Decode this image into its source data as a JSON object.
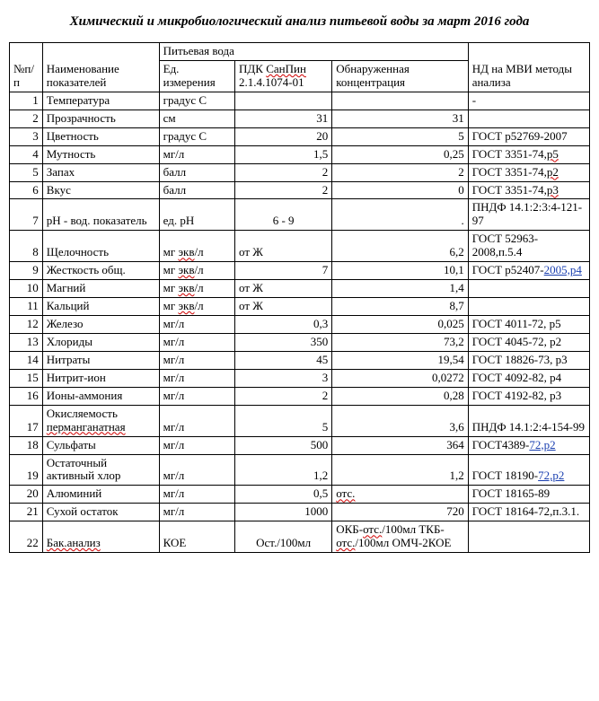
{
  "title": "Химический и микробиологический анализ питьевой воды за март 2016 года",
  "headers": {
    "n": "№п/п",
    "name": "Наименование показателей",
    "water": "Питьевая вода",
    "unit": "Ед. измерения",
    "pdk_prefix": "ПДК ",
    "pdk_link": "СанПин",
    "pdk_suffix": " 2.1.4.1074-01",
    "conc": "Обнаруженная концентрация",
    "nd": "НД на МВИ методы анализа"
  },
  "rows": [
    {
      "n": "1",
      "name": "Температура",
      "unit": "градус С",
      "pdk": "",
      "conc": "",
      "nd": "-"
    },
    {
      "n": "2",
      "name": "Прозрачность",
      "unit": "см",
      "pdk": "31",
      "conc": "31",
      "nd": ""
    },
    {
      "n": "3",
      "name": "Цветность",
      "unit": "градус С",
      "pdk": "20",
      "conc": "5",
      "nd": "ГОСТ р52769-2007"
    },
    {
      "n": "4",
      "name": "Мутность",
      "unit": "мг/л",
      "pdk": "1,5",
      "conc": "0,25",
      "nd_parts": [
        "ГОСТ 3351-74,",
        {
          "wave": "р5"
        }
      ]
    },
    {
      "n": "5",
      "name": "Запах",
      "unit": "балл",
      "pdk": "2",
      "conc": "2",
      "nd_parts": [
        "ГОСТ 3351-74,",
        {
          "wave": "р2"
        }
      ]
    },
    {
      "n": "6",
      "name": "Вкус",
      "unit": "балл",
      "pdk": "2",
      "conc": "0",
      "nd_parts": [
        "ГОСТ 3351-74,",
        {
          "wave": "р3"
        }
      ]
    },
    {
      "n": "7",
      "name": "рН - вод. показатель",
      "unit": "ед. рН",
      "pdk": "6 - 9",
      "pdk_align": "center",
      "conc": ".",
      "nd": "ПНДФ 14.1:2:3:4-121-97"
    },
    {
      "n": "8",
      "name": "Щелочность",
      "unit_parts": [
        "мг ",
        {
          "wave": "экв"
        },
        "/л"
      ],
      "pdk": "от Ж",
      "pdk_align": "left",
      "conc": "6,2",
      "nd": "ГОСТ 52963-2008,п.5.4"
    },
    {
      "n": "9",
      "name": "Жесткость общ.",
      "unit_parts": [
        "мг ",
        {
          "wave": "экв"
        },
        "/л"
      ],
      "pdk": "7",
      "conc": "10,1",
      "nd_parts": [
        "ГОСТ р52407-",
        {
          "link": "2005,р4"
        }
      ]
    },
    {
      "n": "10",
      "name": "Магний",
      "unit_parts": [
        "мг ",
        {
          "wave": "экв"
        },
        "/л"
      ],
      "pdk": "от Ж",
      "pdk_align": "left",
      "conc": "1,4",
      "nd": ""
    },
    {
      "n": "11",
      "name": "Кальций",
      "unit_parts": [
        "мг ",
        {
          "wave": "экв"
        },
        "/л"
      ],
      "pdk": "от Ж",
      "pdk_align": "left",
      "conc": "8,7",
      "nd": ""
    },
    {
      "n": "12",
      "name": "Железо",
      "unit": "мг/л",
      "pdk": "0,3",
      "conc": "0,025",
      "nd": "ГОСТ 4011-72, р5"
    },
    {
      "n": "13",
      "name": "Хлориды",
      "unit": "мг/л",
      "pdk": "350",
      "conc": "73,2",
      "nd": "ГОСТ 4045-72, р2"
    },
    {
      "n": "14",
      "name": "Нитраты",
      "unit": "мг/л",
      "pdk": "45",
      "conc": "19,54",
      "nd": "ГОСТ 18826-73, р3"
    },
    {
      "n": "15",
      "name": "Нитрит-ион",
      "unit": "мг/л",
      "pdk": "3",
      "conc": "0,0272",
      "nd": "ГОСТ 4092-82, р4"
    },
    {
      "n": "16",
      "name": "Ионы-аммония",
      "unit": "мг/л",
      "pdk": "2",
      "conc": "0,28",
      "nd": "ГОСТ 4192-82, р3"
    },
    {
      "n": "17",
      "name_parts": [
        "Окисляемость ",
        {
          "wave": "перманганатная"
        }
      ],
      "unit": "мг/л",
      "pdk": "5",
      "conc": "3,6",
      "nd": "ПНДФ 14.1:2:4-154-99"
    },
    {
      "n": "18",
      "name": "Сульфаты",
      "unit": "мг/л",
      "pdk": "500",
      "conc": "364",
      "nd_parts": [
        "ГОСТ4389-",
        {
          "link": "72,р2"
        }
      ]
    },
    {
      "n": "19",
      "name": "Остаточный активный хлор",
      "unit": "мг/л",
      "pdk": "1,2",
      "conc": "1,2",
      "nd_parts": [
        "ГОСТ 18190-",
        {
          "link": "72,р2"
        }
      ]
    },
    {
      "n": "20",
      "name": "Алюминий",
      "unit": "мг/л",
      "pdk": "0,5",
      "conc_parts": [
        {
          "wave": "отс."
        }
      ],
      "conc_align": "left",
      "nd": "ГОСТ 18165-89"
    },
    {
      "n": "21",
      "name": "Сухой остаток",
      "unit": "мг/л",
      "pdk": "1000",
      "conc": "720",
      "nd": "ГОСТ 18164-72,п.3.1."
    },
    {
      "n": "22",
      "name_parts": [
        {
          "wave": "Бак.анализ"
        }
      ],
      "unit": "КОЕ",
      "pdk": "Ост./100мл",
      "pdk_align": "center",
      "conc_parts": [
        "ОКБ-",
        {
          "wave": "отс."
        },
        "/100мл ТКБ-",
        {
          "wave": "отс."
        },
        "/100мл ОМЧ-2КОЕ"
      ],
      "conc_align": "left",
      "nd": ""
    }
  ]
}
